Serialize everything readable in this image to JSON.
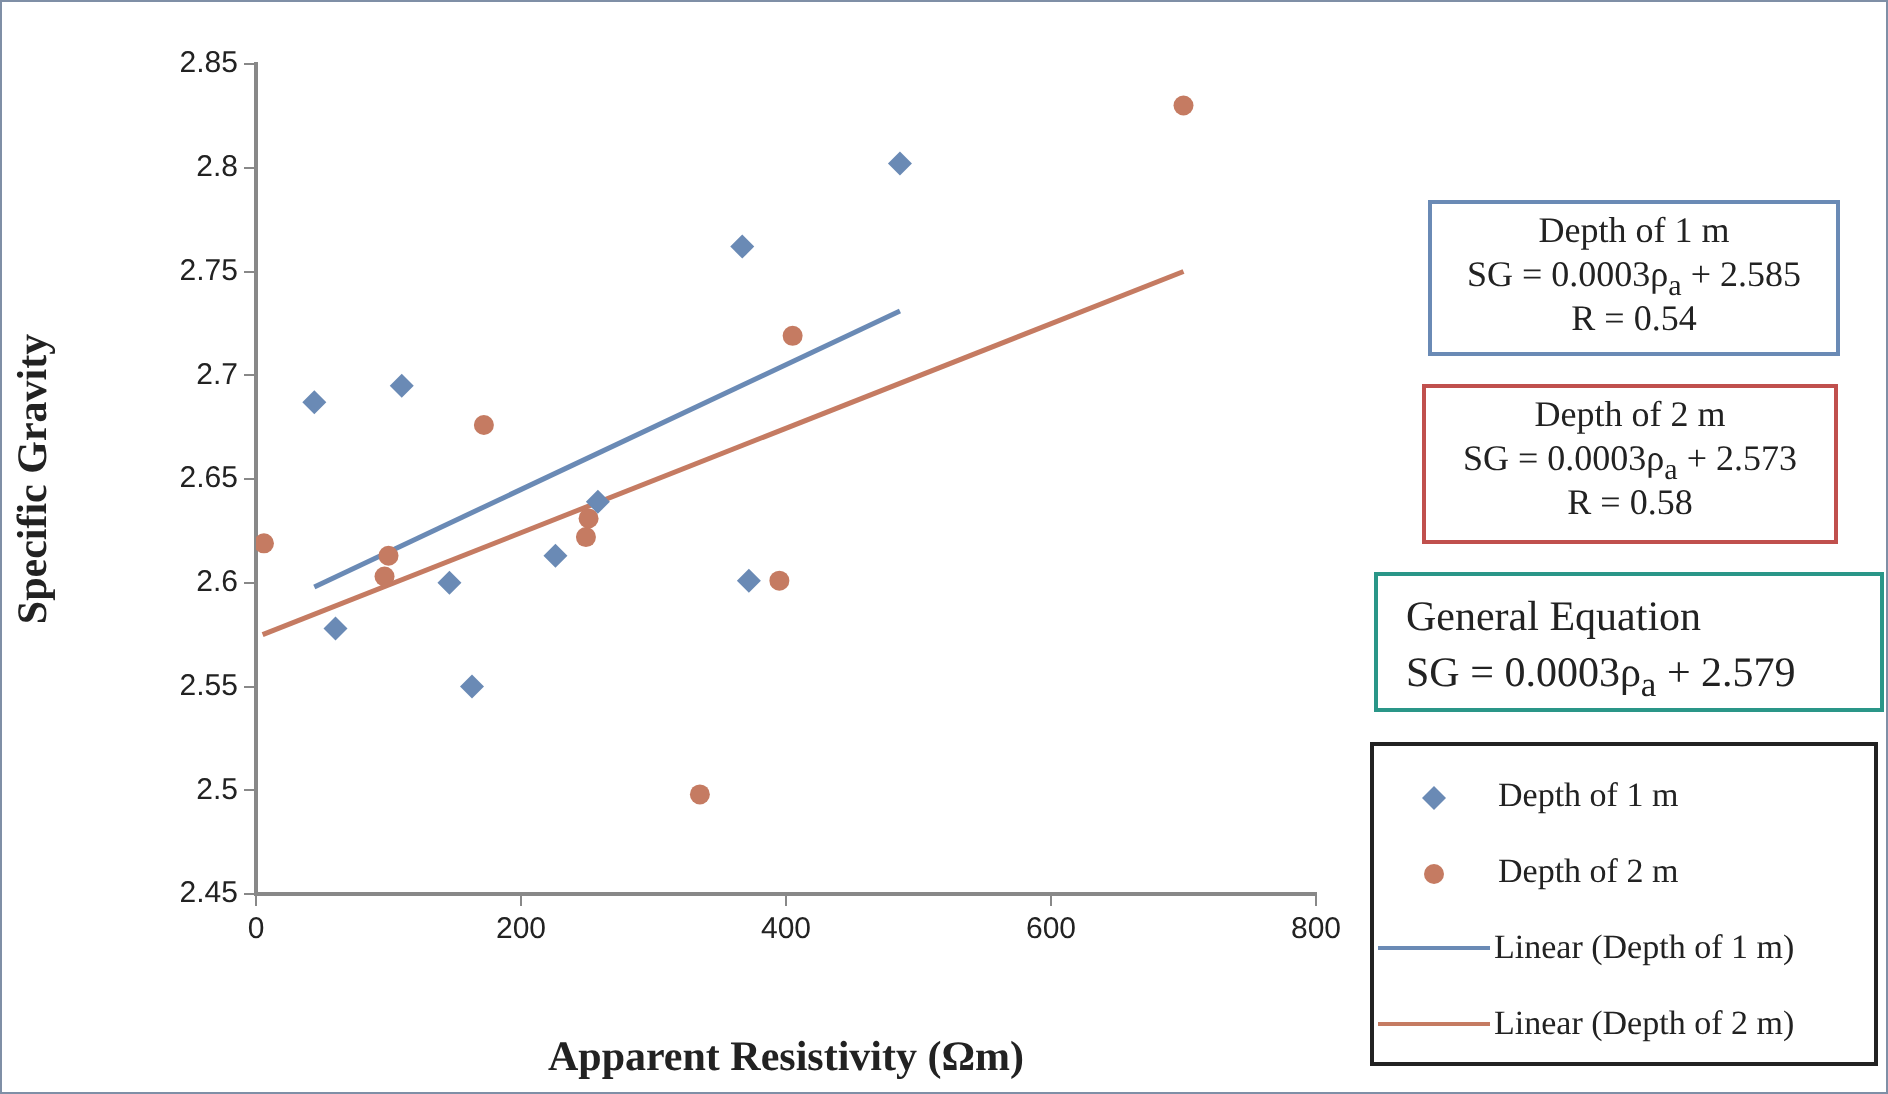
{
  "chart_data": {
    "type": "scatter",
    "xlabel": "Apparent Resistivity (Ωm)",
    "ylabel": "Specific Gravity",
    "xlim": [
      0,
      800
    ],
    "xticks": [
      0,
      200,
      400,
      600,
      800
    ],
    "ylim": [
      2.45,
      2.85
    ],
    "yticks": [
      2.45,
      2.5,
      2.55,
      2.6,
      2.65,
      2.7,
      2.75,
      2.8,
      2.85
    ],
    "grid": false,
    "legend": "bottom right",
    "annotations": [
      "Depth of 1 m\nSG = 0.0003ρ$_{a}$ + 2.585\nR = 0.54",
      "Depth of 2 m\nSG = 0.0003ρ$_{a}$ + 2.573\nR = 0.58",
      "General Equation\nSG = 0.0003ρ$_{a}$ + 2.579"
    ],
    "series": [
      {
        "name": "Depth of 1 m",
        "type": "scatter",
        "marker": "diamond",
        "color": "#6a8ab5",
        "x": [
          44,
          60,
          110,
          146,
          163,
          226,
          258,
          367,
          372,
          486
        ],
        "values": [
          2.687,
          2.578,
          2.695,
          2.6,
          2.55,
          2.613,
          2.639,
          2.762,
          2.601,
          2.802
        ]
      },
      {
        "name": "Depth of 2 m",
        "type": "scatter",
        "marker": "circle",
        "color": "#c57b62",
        "x": [
          6,
          97,
          100,
          172,
          249,
          251,
          335,
          395,
          405,
          700
        ],
        "values": [
          2.619,
          2.603,
          2.613,
          2.676,
          2.622,
          2.631,
          2.498,
          2.601,
          2.719,
          2.83
        ]
      },
      {
        "name": "Linear (Depth of 1 m)",
        "type": "line",
        "marker": "none",
        "color": "#6a8ab5",
        "x": [
          44,
          486
        ],
        "values": [
          2.598,
          2.731
        ]
      },
      {
        "name": "Linear (Depth of 2 m)",
        "type": "line",
        "marker": "none",
        "color": "#c57b62",
        "x": [
          5,
          700
        ],
        "values": [
          2.575,
          2.75
        ]
      }
    ]
  }
}
